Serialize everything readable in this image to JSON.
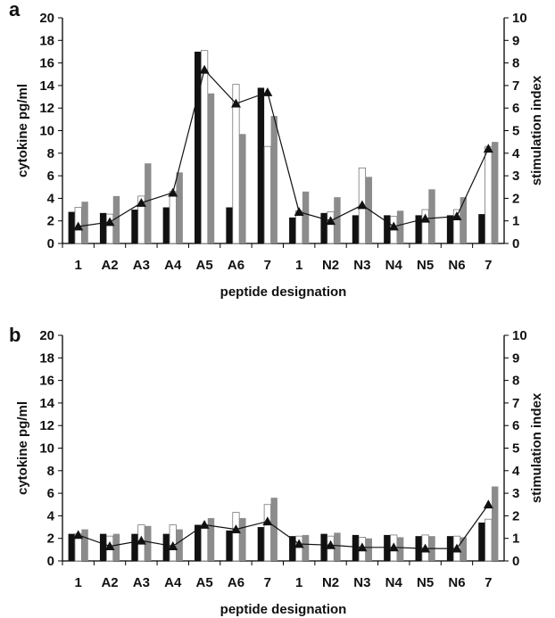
{
  "colors": {
    "bar_dark": "#111111",
    "bar_white": "#ffffff",
    "bar_gray": "#8c8c8c",
    "line": "#111111",
    "marker": "#111111"
  },
  "chart_data": [
    {
      "panel": "a",
      "type": "bar",
      "categories": [
        "1",
        "A2",
        "A3",
        "A4",
        "A5",
        "A6",
        "7",
        "1",
        "N2",
        "N3",
        "N4",
        "N5",
        "N6",
        "7"
      ],
      "xlabel": "peptide designation",
      "ylabel": "cytokine pg/ml",
      "ylim": [
        0,
        20
      ],
      "yticks": [
        0,
        2,
        4,
        6,
        8,
        10,
        12,
        14,
        16,
        18,
        20
      ],
      "y2label": "stimulation index",
      "y2lim": [
        0,
        10
      ],
      "y2ticks": [
        0,
        1,
        2,
        3,
        4,
        5,
        6,
        7,
        8,
        9,
        10
      ],
      "grid": false,
      "legend": "none",
      "series": [
        {
          "style": "dark",
          "values": [
            2.8,
            2.7,
            3.0,
            3.2,
            17.0,
            3.2,
            13.8,
            2.3,
            2.7,
            2.5,
            2.5,
            2.5,
            2.5,
            2.6
          ]
        },
        {
          "style": "white",
          "values": [
            3.2,
            2.6,
            4.2,
            4.6,
            17.1,
            14.1,
            8.6,
            2.9,
            2.8,
            6.7,
            2.4,
            3.0,
            3.0,
            8.6
          ]
        },
        {
          "style": "gray",
          "values": [
            3.7,
            4.2,
            7.1,
            6.3,
            13.3,
            9.7,
            11.3,
            4.6,
            4.1,
            5.9,
            2.9,
            4.8,
            4.1,
            9.0
          ]
        }
      ],
      "line_series": {
        "axis": "secondary",
        "values": [
          0.75,
          0.95,
          1.8,
          2.25,
          7.7,
          6.2,
          6.7,
          1.4,
          1.0,
          1.7,
          0.75,
          1.1,
          1.2,
          4.2
        ]
      }
    },
    {
      "panel": "b",
      "type": "bar",
      "categories": [
        "1",
        "A2",
        "A3",
        "A4",
        "A5",
        "A6",
        "7",
        "1",
        "N2",
        "N3",
        "N4",
        "N5",
        "N6",
        "7"
      ],
      "xlabel": "peptide designation",
      "ylabel": "cytokine pg/ml",
      "ylim": [
        0,
        20
      ],
      "yticks": [
        0,
        2,
        4,
        6,
        8,
        10,
        12,
        14,
        16,
        18,
        20
      ],
      "y2label": "stimulation index",
      "y2lim": [
        0,
        10
      ],
      "y2ticks": [
        0,
        1,
        2,
        3,
        4,
        5,
        6,
        7,
        8,
        9,
        10
      ],
      "grid": false,
      "legend": "none",
      "series": [
        {
          "style": "dark",
          "values": [
            2.4,
            2.4,
            2.4,
            2.4,
            3.2,
            2.7,
            3.0,
            2.2,
            2.4,
            2.3,
            2.3,
            2.2,
            2.2,
            3.4
          ]
        },
        {
          "style": "white",
          "values": [
            2.4,
            2.2,
            3.2,
            3.2,
            3.2,
            4.3,
            5.0,
            2.2,
            2.2,
            2.1,
            2.3,
            2.3,
            2.2,
            3.7
          ]
        },
        {
          "style": "gray",
          "values": [
            2.8,
            2.4,
            3.1,
            2.8,
            3.8,
            3.8,
            5.6,
            2.3,
            2.5,
            2.0,
            2.1,
            2.2,
            2.1,
            6.6
          ]
        }
      ],
      "line_series": {
        "axis": "secondary",
        "values": [
          1.15,
          0.65,
          0.9,
          0.65,
          1.6,
          1.4,
          1.75,
          0.75,
          0.7,
          0.6,
          0.6,
          0.55,
          0.55,
          2.5
        ]
      }
    }
  ]
}
